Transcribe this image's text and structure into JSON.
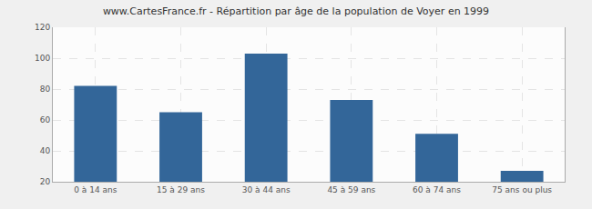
{
  "chart_data": {
    "type": "bar",
    "title": "www.CartesFrance.fr - Répartition par âge de la population de Voyer en 1999",
    "categories": [
      "0 à 14 ans",
      "15 à 29 ans",
      "30 à 44 ans",
      "45 à 59 ans",
      "60 à 74 ans",
      "75 ans ou plus"
    ],
    "values": [
      82,
      65,
      103,
      73,
      51,
      27
    ],
    "color": "#336699",
    "ylim": [
      20,
      120
    ],
    "yticks": [
      20,
      40,
      60,
      80,
      100,
      120
    ],
    "grid": true
  }
}
